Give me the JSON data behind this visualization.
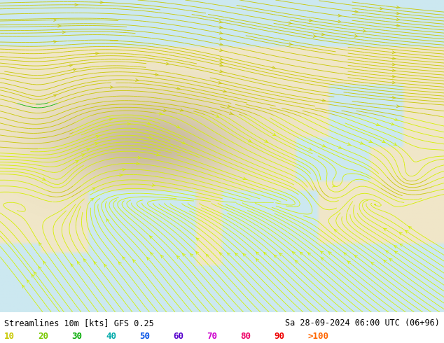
{
  "title_left": "Streamlines 10m [kts] GFS 0.25",
  "title_right": "Sa 28-09-2024 06:00 UTC (06+96)",
  "colorbar_labels": [
    "10",
    "20",
    "30",
    "40",
    "50",
    "60",
    "70",
    "80",
    "90",
    ">100"
  ],
  "bg_color": "#ffffff",
  "ocean_color": "#cce8f0",
  "land_color": "#f0e6c8",
  "fig_width": 6.34,
  "fig_height": 4.9,
  "dpi": 100,
  "font_size_title": 8.5,
  "font_size_legend": 9,
  "speed_levels": [
    0,
    10,
    20,
    30,
    40,
    50,
    60,
    70,
    80,
    90,
    100,
    200
  ],
  "speed_colors": [
    "#d4f000",
    "#c8c800",
    "#00b400",
    "#00c864",
    "#00aaaa",
    "#0050e6",
    "#5500cc",
    "#cc00cc",
    "#ee0066",
    "#ee0000",
    "#ff6600"
  ],
  "legend_colors_display": [
    "#c8c800",
    "#78c800",
    "#00aa00",
    "#00aaaa",
    "#0050e6",
    "#5500cc",
    "#cc00cc",
    "#ee0066",
    "#ee0000",
    "#ff6600"
  ],
  "map_extent": [
    60,
    150,
    -5,
    65
  ],
  "typhoon_lon": 127.5,
  "typhoon_lat": 22.0,
  "typhoon2_lon": 143.0,
  "typhoon2_lat": 25.0
}
